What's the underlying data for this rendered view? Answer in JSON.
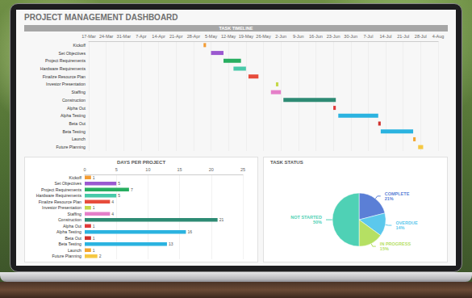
{
  "title": "PROJECT MANAGEMENT DASHBOARD",
  "chart_data": [
    {
      "type": "gantt",
      "title": "TASK TIMELINE",
      "orientation": "horizontal",
      "categories": [
        "Kickoff",
        "Set Objectives",
        "Project Requirements",
        "Hardware Requirements",
        "Finalize Resource Plan",
        "Investor Presentation",
        "Staffing",
        "Construction",
        "Alpha Out",
        "Alpha Testing",
        "Beta Out",
        "Beta Testing",
        "Launch",
        "Future Planning"
      ],
      "start": [
        46,
        49,
        54,
        58,
        64,
        75,
        73,
        78,
        98,
        100,
        116,
        117,
        130,
        132
      ],
      "values": [
        1,
        5,
        7,
        5,
        4,
        1,
        4,
        21,
        1,
        16,
        1,
        13,
        1,
        2
      ],
      "colors": [
        "#f39c34",
        "#9b59d0",
        "#27ae60",
        "#48c9a9",
        "#e74c3c",
        "#c5d84a",
        "#e57fc9",
        "#2e8b74",
        "#e03a3a",
        "#2bb3e0",
        "#d0312d",
        "#2bb3e0",
        "#f3a531",
        "#f5c842"
      ],
      "xlim": [
        0,
        140
      ],
      "xticks": [
        {
          "value": 0,
          "label": "17-Mar"
        },
        {
          "value": 7,
          "label": "24-Mar"
        },
        {
          "value": 14,
          "label": "31-Mar"
        },
        {
          "value": 21,
          "label": "7-Apr"
        },
        {
          "value": 28,
          "label": "14-Apr"
        },
        {
          "value": 35,
          "label": "21-Apr"
        },
        {
          "value": 42,
          "label": "28-Apr"
        },
        {
          "value": 49,
          "label": "5-May"
        },
        {
          "value": 56,
          "label": "12-May"
        },
        {
          "value": 63,
          "label": "19-May"
        },
        {
          "value": 70,
          "label": "26-May"
        },
        {
          "value": 77,
          "label": "2-Jun"
        },
        {
          "value": 84,
          "label": "9-Jun"
        },
        {
          "value": 91,
          "label": "16-Jun"
        },
        {
          "value": 98,
          "label": "23-Jun"
        },
        {
          "value": 105,
          "label": "30-Jun"
        },
        {
          "value": 112,
          "label": "7-Jul"
        },
        {
          "value": 119,
          "label": "14-Jul"
        },
        {
          "value": 126,
          "label": "21-Jul"
        },
        {
          "value": 133,
          "label": "28-Jul"
        },
        {
          "value": 140,
          "label": "4-Aug"
        }
      ],
      "grid": true
    },
    {
      "type": "bar",
      "title": "DAYS PER PROJECT",
      "orientation": "horizontal",
      "categories": [
        "Kickoff",
        "Set Objectives",
        "Project Requirements",
        "Hardware Requirements",
        "Finalize Resource Plan",
        "Investor Presentation",
        "Staffing",
        "Construction",
        "Alpha Out",
        "Alpha Testing",
        "Beta Out",
        "Beta Testing",
        "Launch",
        "Future Planning"
      ],
      "values": [
        1,
        5,
        7,
        5,
        4,
        1,
        4,
        21,
        1,
        16,
        1,
        13,
        1,
        2
      ],
      "colors": [
        "#f39c34",
        "#9b59d0",
        "#27ae60",
        "#48c9a9",
        "#e74c3c",
        "#c5d84a",
        "#e57fc9",
        "#2e8b74",
        "#e03a3a",
        "#2bb3e0",
        "#d0312d",
        "#2bb3e0",
        "#f3a531",
        "#f5c842"
      ],
      "xlim": [
        0,
        25
      ],
      "xticks": [
        0,
        5,
        10,
        15,
        20,
        25
      ],
      "grid": true,
      "data_labels": true
    },
    {
      "type": "pie",
      "title": "TASK STATUS",
      "categories": [
        "COMPLETE",
        "OVERDUE",
        "IN PROGRESS",
        "NOT STARTED"
      ],
      "values": [
        21,
        14,
        15,
        50
      ],
      "value_labels": [
        "21%",
        "14%",
        "15%",
        "50%"
      ],
      "colors": [
        "#5b7fd6",
        "#5bc8ec",
        "#b5e063",
        "#4fd1b5"
      ],
      "data_labels": true
    }
  ]
}
